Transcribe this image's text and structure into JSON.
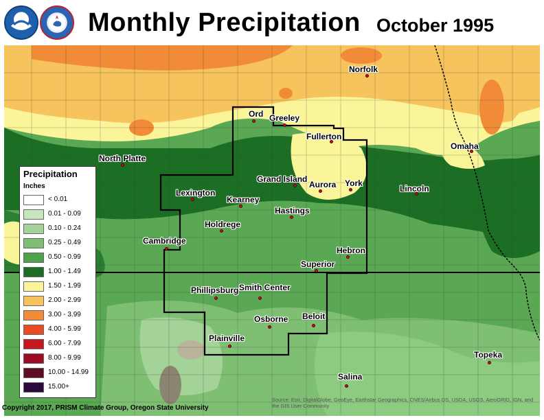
{
  "header": {
    "title": "Monthly Precipitation",
    "date": "October 1995",
    "logo_noaa": "noaa-logo",
    "logo_nws": "nws-logo"
  },
  "legend": {
    "title": "Precipitation",
    "units": "Inches",
    "classes": [
      {
        "label": "< 0.01",
        "color": "#ffffff"
      },
      {
        "label": "0.01 - 0.09",
        "color": "#c7e6bc"
      },
      {
        "label": "0.10 - 0.24",
        "color": "#a3d397"
      },
      {
        "label": "0.25 - 0.49",
        "color": "#7fbf74"
      },
      {
        "label": "0.50 - 0.99",
        "color": "#4ea24c"
      },
      {
        "label": "1.00 - 1.49",
        "color": "#1b6e24"
      },
      {
        "label": "1.50 - 1.99",
        "color": "#fbf59a"
      },
      {
        "label": "2.00 - 2.99",
        "color": "#f7c35c"
      },
      {
        "label": "3.00 - 3.99",
        "color": "#f28b38"
      },
      {
        "label": "4.00 - 5.99",
        "color": "#ea4b24"
      },
      {
        "label": "6.00 - 7.99",
        "color": "#c7181d"
      },
      {
        "label": "8.00 - 9.99",
        "color": "#9a0d25"
      },
      {
        "label": "10.00 - 14.99",
        "color": "#5e0c22"
      },
      {
        "label": "15.00+",
        "color": "#2b0a3d"
      }
    ]
  },
  "cities": [
    {
      "name": "Norfolk"
    },
    {
      "name": "Ord"
    },
    {
      "name": "Greeley"
    },
    {
      "name": "Fullerton"
    },
    {
      "name": "North Platte"
    },
    {
      "name": "Omaha"
    },
    {
      "name": "Grand Island"
    },
    {
      "name": "Aurora"
    },
    {
      "name": "York"
    },
    {
      "name": "Lincoln"
    },
    {
      "name": "Lexington"
    },
    {
      "name": "Kearney"
    },
    {
      "name": "Hastings"
    },
    {
      "name": "Holdrege"
    },
    {
      "name": "Cambridge"
    },
    {
      "name": "Hebron"
    },
    {
      "name": "Superior"
    },
    {
      "name": "Phillipsburg"
    },
    {
      "name": "Smith Center"
    },
    {
      "name": "Osborne"
    },
    {
      "name": "Beloit"
    },
    {
      "name": "Plainville"
    },
    {
      "name": "Topeka"
    },
    {
      "name": "Salina"
    }
  ],
  "footer": {
    "copyright": "Copyright 2017, PRISM Climate Group, Oregon State University",
    "source": "Source: Esri, DigitalGlobe, GeoEye, Earthstar Geographics, CNES/Airbus DS, USDA, USGS, AeroGRID, IGN, and the GIS User Community"
  }
}
